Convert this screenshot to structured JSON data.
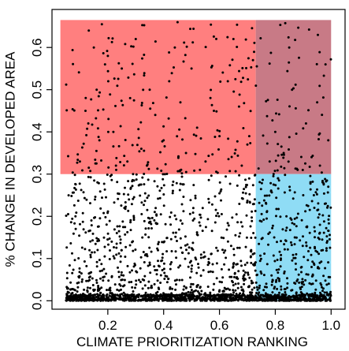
{
  "chart_data": {
    "type": "scatter",
    "title": "",
    "xlabel": "CLIMATE PRIORITIZATION RANKING",
    "ylabel": "% CHANGE IN DEVELOPED AREA",
    "xlim": [
      0.0,
      1.05
    ],
    "ylim": [
      -0.02,
      0.69
    ],
    "x_ticks": [
      0.2,
      0.4,
      0.6,
      0.8,
      1.0
    ],
    "x_tick_labels": [
      "0.2",
      "0.4",
      "0.6",
      "0.8",
      "1.0"
    ],
    "y_ticks": [
      0.0,
      0.1,
      0.2,
      0.3,
      0.4,
      0.5,
      0.6
    ],
    "y_tick_labels": [
      "0.0",
      "0.1",
      "0.2",
      "0.3",
      "0.4",
      "0.5",
      "0.6"
    ],
    "grid": false,
    "regions": [
      {
        "x": [
          0.03,
          0.73
        ],
        "y": [
          0.3,
          0.665
        ],
        "color": "#ff7f7f"
      },
      {
        "x": [
          0.73,
          1.0
        ],
        "y": [
          0.3,
          0.665
        ],
        "color": "#c87a86"
      },
      {
        "x": [
          0.73,
          1.0
        ],
        "y": [
          0.0,
          0.3
        ],
        "color": "#8fdcf5"
      }
    ],
    "point_color": "#000000",
    "point_count_estimate": 2500,
    "points": [
      [
        0.12,
        0.45
      ],
      [
        0.13,
        0.42
      ],
      [
        0.15,
        0.6
      ],
      [
        0.16,
        0.5
      ],
      [
        0.17,
        0.38
      ],
      [
        0.19,
        0.56
      ],
      [
        0.2,
        0.58
      ],
      [
        0.22,
        0.4
      ],
      [
        0.25,
        0.55
      ],
      [
        0.27,
        0.33
      ],
      [
        0.28,
        0.48
      ],
      [
        0.3,
        0.62
      ],
      [
        0.32,
        0.36
      ],
      [
        0.35,
        0.5
      ],
      [
        0.37,
        0.44
      ],
      [
        0.4,
        0.38
      ],
      [
        0.42,
        0.52
      ],
      [
        0.44,
        0.6
      ],
      [
        0.45,
        0.66
      ],
      [
        0.46,
        0.47
      ],
      [
        0.48,
        0.35
      ],
      [
        0.5,
        0.55
      ],
      [
        0.52,
        0.41
      ],
      [
        0.55,
        0.33
      ],
      [
        0.58,
        0.45
      ],
      [
        0.6,
        0.39
      ],
      [
        0.63,
        0.52
      ],
      [
        0.65,
        0.62
      ],
      [
        0.67,
        0.46
      ],
      [
        0.7,
        0.37
      ],
      [
        0.72,
        0.57
      ],
      [
        0.1,
        0.33
      ],
      [
        0.23,
        0.31
      ],
      [
        0.34,
        0.32
      ],
      [
        0.53,
        0.31
      ],
      [
        0.68,
        0.32
      ],
      [
        0.78,
        0.33
      ],
      [
        0.8,
        0.4
      ],
      [
        0.83,
        0.35
      ],
      [
        0.86,
        0.5
      ],
      [
        0.88,
        0.31
      ],
      [
        0.91,
        0.42
      ],
      [
        0.93,
        0.34
      ],
      [
        0.95,
        0.47
      ],
      [
        0.98,
        0.56
      ],
      [
        0.99,
        0.38
      ],
      [
        0.85,
        0.6
      ],
      [
        0.96,
        0.32
      ],
      [
        0.81,
        0.29
      ],
      [
        0.84,
        0.2
      ],
      [
        0.87,
        0.15
      ],
      [
        0.9,
        0.25
      ],
      [
        0.93,
        0.08
      ],
      [
        0.96,
        0.18
      ],
      [
        0.99,
        0.27
      ],
      [
        0.82,
        0.1
      ],
      [
        0.88,
        0.05
      ],
      [
        0.94,
        0.22
      ],
      [
        0.97,
        0.12
      ],
      [
        0.79,
        0.02
      ]
    ]
  }
}
